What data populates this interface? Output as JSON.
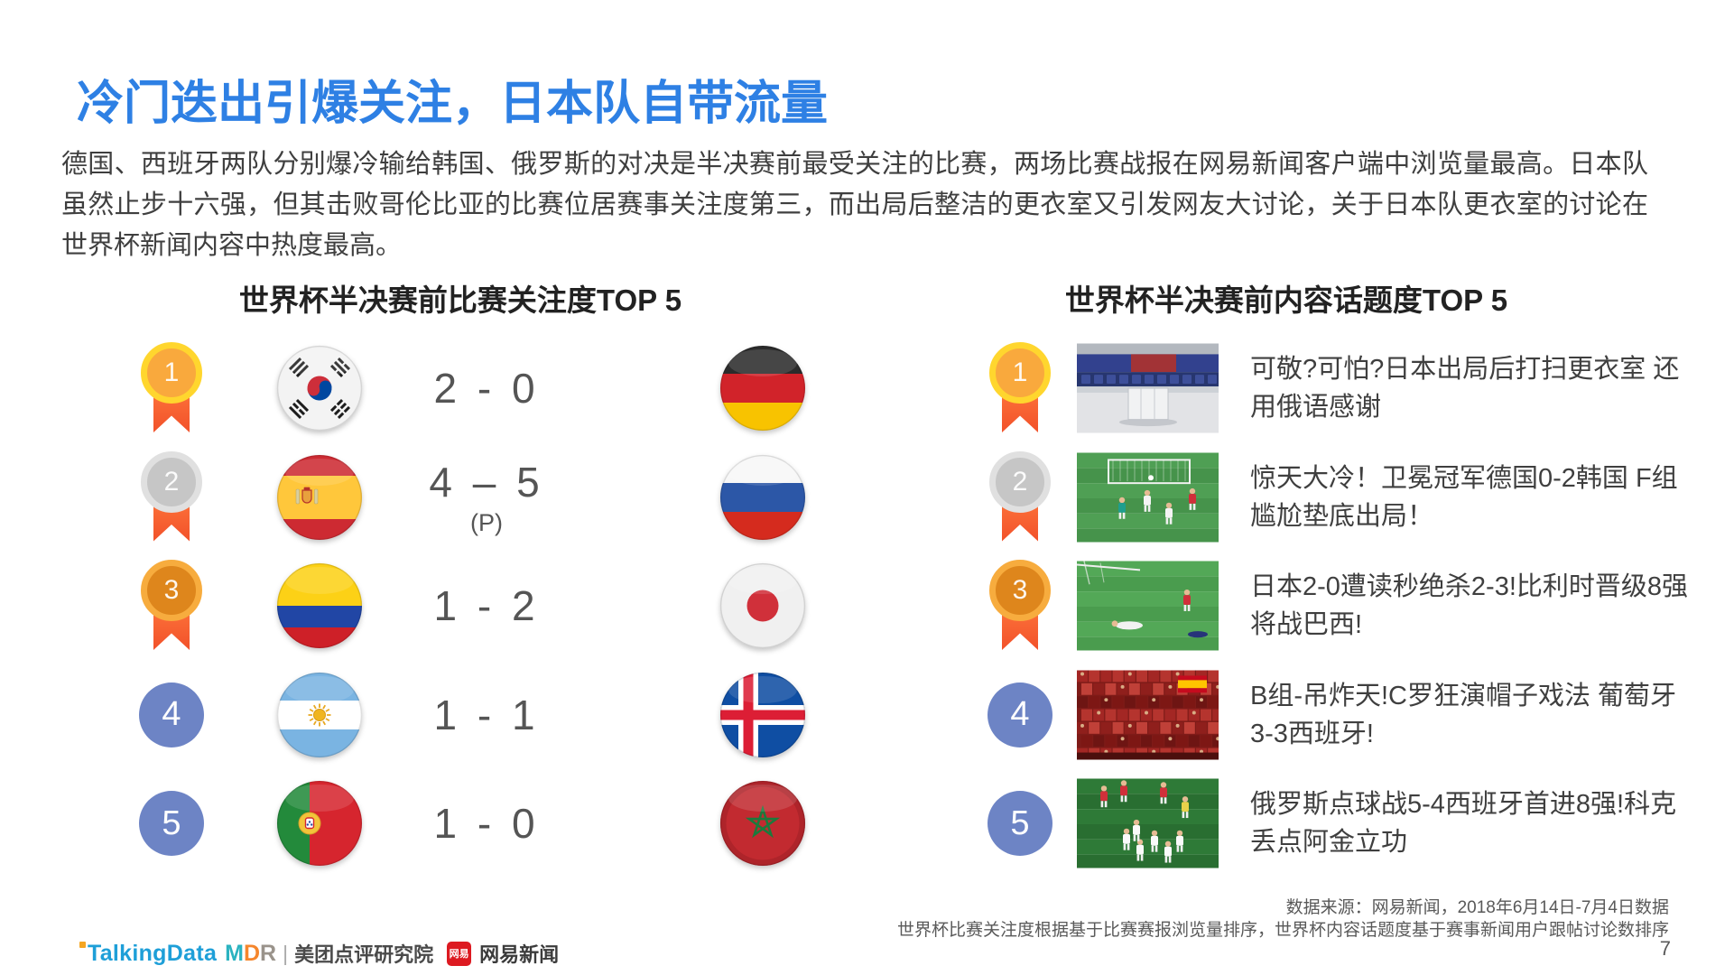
{
  "slide": {
    "title": "冷门迭出引爆关注，日本队自带流量",
    "paragraph": "德国、西班牙两队分别爆冷输给韩国、俄罗斯的对决是半决赛前最受关注的比赛，两场比赛战报在网易新闻客户端中浏览量最高。日本队虽然止步十六强，但其击败哥伦比亚的比赛位居赛事关注度第三，而出局后整洁的更衣室又引发网友大讨论，关于日本队更衣室的讨论在世界杯新闻内容中热度最高。",
    "page_number": "7"
  },
  "left_section": {
    "title": "世界杯半决赛前比赛关注度TOP 5",
    "rows": [
      {
        "rank": "1",
        "team1": "south-korea",
        "score": "2 - 0",
        "score_note": "",
        "team2": "germany"
      },
      {
        "rank": "2",
        "team1": "spain",
        "score": "4 – 5",
        "score_note": "(P)",
        "team2": "russia"
      },
      {
        "rank": "3",
        "team1": "colombia",
        "score": "1 - 2",
        "score_note": "",
        "team2": "japan"
      },
      {
        "rank": "4",
        "team1": "argentina",
        "score": "1 - 1",
        "score_note": "",
        "team2": "iceland"
      },
      {
        "rank": "5",
        "team1": "portugal",
        "score": "1 - 0",
        "score_note": "",
        "team2": "morocco"
      }
    ]
  },
  "right_section": {
    "title": "世界杯半决赛前内容话题度TOP 5",
    "items": [
      {
        "rank": "1",
        "photo": "japan-locker-room",
        "text": "可敬?可怕?日本出局后打扫更衣室 还用俄语感谢"
      },
      {
        "rank": "2",
        "photo": "germany-korea-match",
        "text": "惊天大冷！卫冕冠军德国0-2韩国 F组尴尬垫底出局！"
      },
      {
        "rank": "3",
        "photo": "japan-belgium-match",
        "text": "日本2-0遭读秒绝杀2-3!比利时晋级8强将战巴西!"
      },
      {
        "rank": "4",
        "photo": "spain-fans-crowd",
        "text": "B组-吊炸天!C罗狂演帽子戏法 葡萄牙3-3西班牙!"
      },
      {
        "rank": "5",
        "photo": "russia-celebration",
        "text": "俄罗斯点球战5-4西班牙首进8强!科克丢点阿金立功"
      }
    ]
  },
  "footer": {
    "source_line1": "数据来源：网易新闻，2018年6月14日-7月4日数据",
    "source_line2": "世界杯比赛关注度根据基于比赛赛报浏览量排序，世界杯内容话题度基于赛事新闻用户跟帖讨论数排序",
    "logos": {
      "talkingdata": "TalkingData",
      "mdr": "MDR",
      "meituan": "美团点评研究院",
      "netease_badge": "网易",
      "netease": "网易新闻"
    }
  },
  "colors": {
    "title_blue": "#2E80E4",
    "rank_circle_blue": "#6D84C5",
    "medal_gold": "#FFD62E",
    "medal_silver": "#E0E0E0",
    "medal_bronze": "#F7AC3E",
    "ribbon_orange": "#FF5A2E"
  }
}
